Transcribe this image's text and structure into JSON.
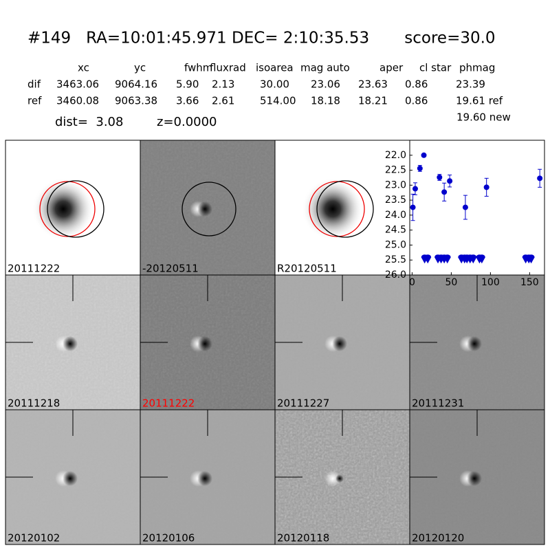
{
  "header": {
    "title": "#149   RA=10:01:45.971 DEC= 2:10:35.53       score=30.0",
    "columns": [
      "xc",
      "yc",
      "fwhm",
      "fluxrad",
      "isoarea",
      "mag auto",
      "aper",
      "cl star",
      "phmag"
    ],
    "rows": [
      {
        "label": "dif",
        "cells": [
          "3463.06",
          "9064.16",
          "5.90",
          "2.13",
          "30.00",
          "23.06",
          "23.63",
          "0.86",
          "23.39"
        ]
      },
      {
        "label": "ref",
        "cells": [
          "3460.08",
          "9063.38",
          "3.66",
          "2.61",
          "514.00",
          "18.18",
          "18.21",
          "0.86",
          "19.61 ref"
        ]
      }
    ],
    "extra": "19.60 new",
    "dist": "dist=  3.08",
    "z": "z=0.0000"
  },
  "stamps": [
    {
      "label": "20111222",
      "color": "#000000"
    },
    {
      "label": "-20120511",
      "color": "#000000"
    },
    {
      "label": "R20120511",
      "color": "#000000"
    },
    {
      "label": "20111218",
      "color": "#000000"
    },
    {
      "label": "20111222",
      "color": "#ff0000"
    },
    {
      "label": "20111227",
      "color": "#000000"
    },
    {
      "label": "20111231",
      "color": "#000000"
    },
    {
      "label": "20120102",
      "color": "#000000"
    },
    {
      "label": "20120106",
      "color": "#000000"
    },
    {
      "label": "20120118",
      "color": "#000000"
    },
    {
      "label": "20120120",
      "color": "#000000"
    }
  ],
  "chart_data": {
    "type": "errorbar",
    "color": "#0000cc",
    "xlim": [
      -3,
      169
    ],
    "ylim": [
      26.0,
      21.5
    ],
    "xticks": [
      0,
      50,
      100,
      150
    ],
    "yticks": [
      {
        "value": 22,
        "label": "22.0"
      },
      {
        "value": 22.5,
        "label": "22.5"
      },
      {
        "value": 23,
        "label": "23.0"
      },
      {
        "value": 23.5,
        "label": "23.5"
      },
      {
        "value": 24,
        "label": "24.0"
      },
      {
        "value": 24.5,
        "label": "24.5"
      },
      {
        "value": 25,
        "label": "25.0"
      },
      {
        "value": 25.5,
        "label": "25.5"
      },
      {
        "value": 26,
        "label": "26.0"
      }
    ],
    "detections": {
      "x": [
        1,
        4,
        10,
        15,
        35,
        41,
        48,
        68,
        95,
        163
      ],
      "values": [
        23.74,
        23.12,
        22.44,
        22.0,
        22.74,
        23.23,
        22.86,
        23.74,
        23.07,
        22.77
      ],
      "errors": [
        0.44,
        0.2,
        0.1,
        0.05,
        0.1,
        0.3,
        0.2,
        0.4,
        0.3,
        0.3
      ]
    },
    "upper_limits": {
      "x": [
        16,
        20,
        33,
        37,
        41,
        45,
        63,
        67,
        70,
        74,
        78,
        86,
        89,
        145,
        149,
        152
      ],
      "values": [
        25.5,
        25.5,
        25.5,
        25.5,
        25.5,
        25.5,
        25.5,
        25.5,
        25.5,
        25.5,
        25.5,
        25.5,
        25.5,
        25.5,
        25.5,
        25.5
      ]
    }
  }
}
